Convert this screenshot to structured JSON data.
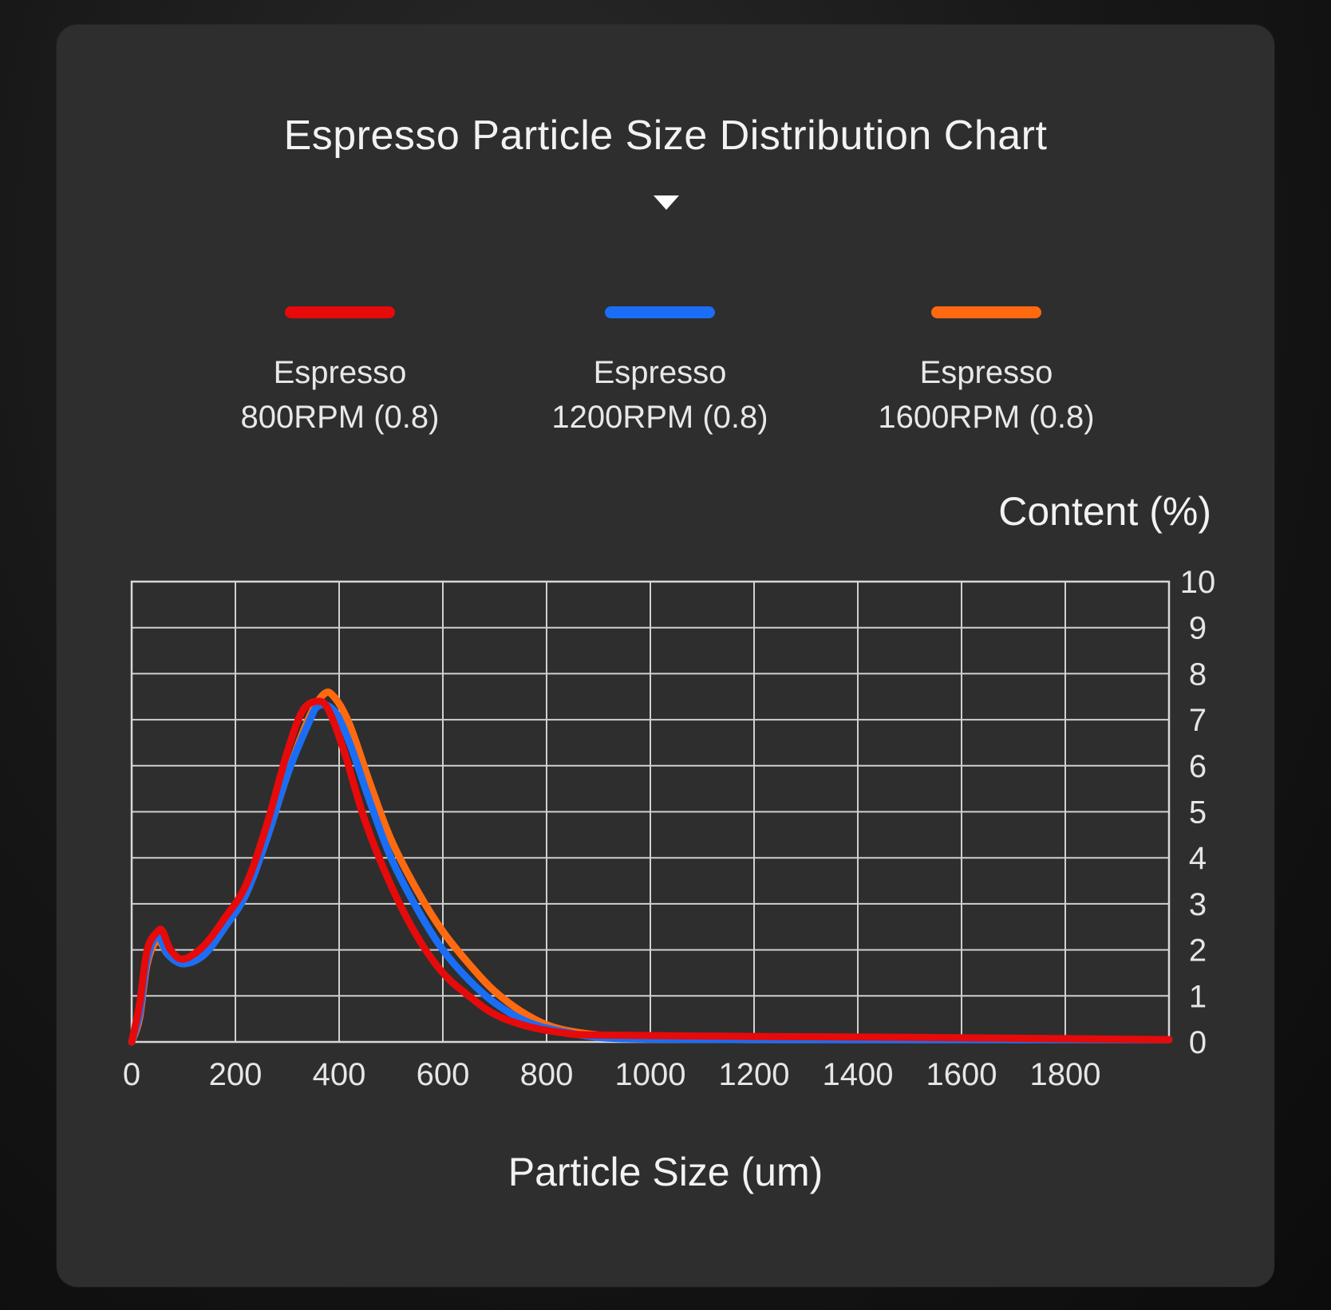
{
  "title": "Espresso Particle Size Distribution Chart",
  "legend": [
    {
      "label": "Espresso\n800RPM (0.8)",
      "color": "#e60a0a"
    },
    {
      "label": "Espresso\n1200RPM (0.8)",
      "color": "#1a6ef5"
    },
    {
      "label": "Espresso\n1600RPM (0.8)",
      "color": "#ff6a10"
    }
  ],
  "chart_data": {
    "type": "line",
    "title": "Espresso Particle Size Distribution Chart",
    "xlabel": "Particle Size (um)",
    "ylabel": "Content (%)",
    "xlim": [
      0,
      2000
    ],
    "ylim": [
      0,
      10
    ],
    "x_ticks": [
      0,
      200,
      400,
      600,
      800,
      1000,
      1200,
      1400,
      1600,
      1800
    ],
    "y_ticks": [
      0,
      1,
      2,
      3,
      4,
      5,
      6,
      7,
      8,
      9,
      10
    ],
    "y_axis_position": "right",
    "grid": true,
    "legend_position": "top",
    "series": [
      {
        "name": "Espresso 1600RPM (0.8)",
        "color": "#ff6a10",
        "points": [
          [
            0,
            0
          ],
          [
            15,
            0.5
          ],
          [
            30,
            1.7
          ],
          [
            50,
            2.2
          ],
          [
            70,
            1.9
          ],
          [
            100,
            1.7
          ],
          [
            140,
            1.9
          ],
          [
            180,
            2.5
          ],
          [
            220,
            3.2
          ],
          [
            260,
            4.4
          ],
          [
            300,
            5.8
          ],
          [
            340,
            7.0
          ],
          [
            370,
            7.55
          ],
          [
            390,
            7.5
          ],
          [
            420,
            6.9
          ],
          [
            460,
            5.6
          ],
          [
            500,
            4.4
          ],
          [
            550,
            3.3
          ],
          [
            600,
            2.4
          ],
          [
            650,
            1.7
          ],
          [
            700,
            1.1
          ],
          [
            760,
            0.6
          ],
          [
            820,
            0.3
          ],
          [
            900,
            0.15
          ],
          [
            1000,
            0.08
          ],
          [
            1200,
            0.05
          ],
          [
            1500,
            0.05
          ],
          [
            2000,
            0.05
          ]
        ]
      },
      {
        "name": "Espresso 1200RPM (0.8)",
        "color": "#1a6ef5",
        "points": [
          [
            0,
            0
          ],
          [
            15,
            0.6
          ],
          [
            30,
            1.8
          ],
          [
            50,
            2.3
          ],
          [
            70,
            1.9
          ],
          [
            100,
            1.7
          ],
          [
            140,
            1.9
          ],
          [
            180,
            2.5
          ],
          [
            220,
            3.2
          ],
          [
            260,
            4.4
          ],
          [
            300,
            5.8
          ],
          [
            340,
            6.9
          ],
          [
            360,
            7.3
          ],
          [
            390,
            7.2
          ],
          [
            420,
            6.5
          ],
          [
            460,
            5.2
          ],
          [
            500,
            4.0
          ],
          [
            550,
            2.9
          ],
          [
            600,
            2.0
          ],
          [
            650,
            1.35
          ],
          [
            700,
            0.85
          ],
          [
            760,
            0.45
          ],
          [
            820,
            0.25
          ],
          [
            900,
            0.1
          ],
          [
            1000,
            0.06
          ],
          [
            1200,
            0.05
          ],
          [
            1500,
            0.05
          ],
          [
            2000,
            0.05
          ]
        ]
      },
      {
        "name": "Espresso 800RPM (0.8)",
        "color": "#e60a0a",
        "points": [
          [
            0,
            0
          ],
          [
            15,
            0.8
          ],
          [
            30,
            2.0
          ],
          [
            50,
            2.4
          ],
          [
            60,
            2.4
          ],
          [
            75,
            2.0
          ],
          [
            100,
            1.8
          ],
          [
            140,
            2.1
          ],
          [
            180,
            2.7
          ],
          [
            220,
            3.4
          ],
          [
            260,
            4.7
          ],
          [
            300,
            6.3
          ],
          [
            330,
            7.2
          ],
          [
            360,
            7.4
          ],
          [
            380,
            7.2
          ],
          [
            410,
            6.3
          ],
          [
            450,
            4.8
          ],
          [
            500,
            3.4
          ],
          [
            550,
            2.3
          ],
          [
            600,
            1.5
          ],
          [
            650,
            1.0
          ],
          [
            700,
            0.6
          ],
          [
            760,
            0.35
          ],
          [
            830,
            0.2
          ],
          [
            900,
            0.15
          ],
          [
            1200,
            0.12
          ],
          [
            1500,
            0.1
          ],
          [
            2000,
            0.05
          ]
        ]
      }
    ]
  }
}
